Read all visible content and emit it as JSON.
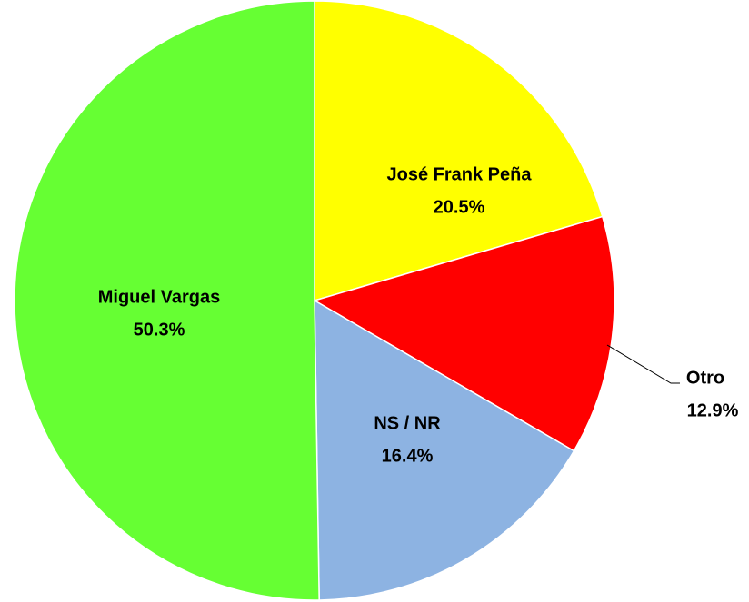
{
  "chart_data": {
    "type": "pie",
    "categories": [
      "José Frank Peña",
      "Otro",
      "NS / NR",
      "Miguel Vargas"
    ],
    "values": [
      20.5,
      12.9,
      16.4,
      50.3
    ],
    "value_labels": [
      "20.5%",
      "12.9%",
      "16.4%",
      "50.3%"
    ],
    "colors": [
      "#ffff00",
      "#ff0000",
      "#8db3e2",
      "#66ff33"
    ]
  }
}
